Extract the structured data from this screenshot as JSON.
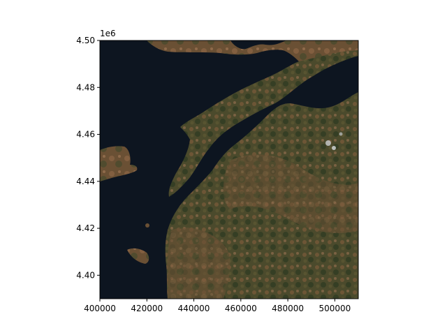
{
  "figure": {
    "type": "raster-map",
    "description_kind": "satellite true-color image",
    "axis_offset_label": "1e6"
  },
  "chart_data": {
    "type": "raster",
    "xlim": [
      400000,
      510000
    ],
    "ylim": [
      4390000,
      4500000
    ],
    "xticks": [
      400000,
      420000,
      440000,
      460000,
      480000,
      500000
    ],
    "xtick_labels": [
      "400000",
      "420000",
      "440000",
      "460000",
      "480000",
      "500000"
    ],
    "yticks": [
      4400000,
      4420000,
      4440000,
      4460000,
      4480000,
      4500000
    ],
    "ytick_labels": [
      "4.40",
      "4.42",
      "4.44",
      "4.46",
      "4.48",
      "4.50"
    ],
    "y_offset_text": "1e6",
    "grid": false,
    "title": "",
    "xlabel": "",
    "ylabel": ""
  },
  "colors": {
    "sea": "#0d1520",
    "land_dark": "#2e3a1f",
    "land_mid": "#4a4a2a",
    "land_brown": "#7a5a3a",
    "land_tan": "#9a7050"
  }
}
